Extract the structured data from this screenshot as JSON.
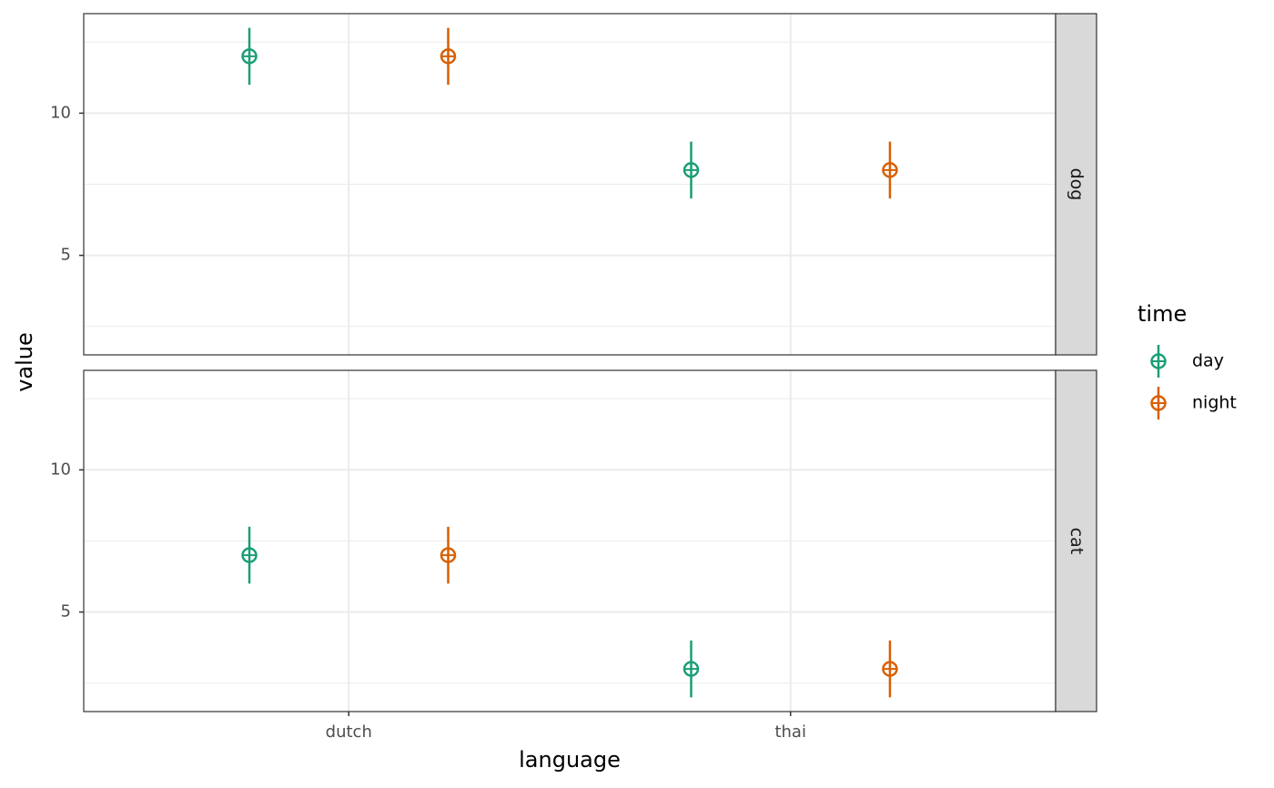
{
  "chart_data": {
    "type": "pointrange",
    "x_label": "language",
    "y_label": "value",
    "legend_title": "time",
    "categories": [
      "dutch",
      "thai"
    ],
    "series": [
      {
        "name": "day",
        "color": "#1b9e77"
      },
      {
        "name": "night",
        "color": "#d95f02"
      }
    ],
    "facets": [
      {
        "label": "dog",
        "values": [
          [
            12,
            8
          ],
          [
            12,
            8
          ]
        ],
        "errors": [
          [
            1,
            1
          ],
          [
            1,
            1
          ]
        ]
      },
      {
        "label": "cat",
        "values": [
          [
            7,
            3
          ],
          [
            7,
            3
          ]
        ],
        "errors": [
          [
            1,
            1
          ],
          [
            1,
            1
          ]
        ]
      }
    ],
    "ylim": [
      1.5,
      13.5
    ],
    "yticks": [
      5,
      10
    ],
    "minor_yticks": [
      2.5,
      7.5,
      12.5
    ],
    "grid": true
  }
}
